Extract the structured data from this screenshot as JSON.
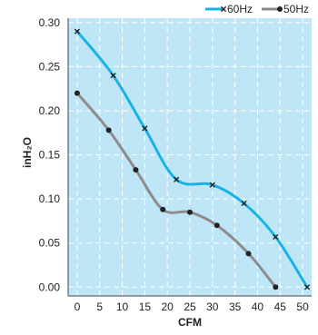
{
  "chart_data": {
    "type": "line",
    "xlabel": "CFM",
    "ylabel": "inH₂O",
    "xlim": [
      -2,
      52
    ],
    "ylim": [
      -0.01,
      0.305
    ],
    "x_ticks": [
      0,
      5,
      10,
      15,
      20,
      25,
      30,
      35,
      40,
      45,
      50
    ],
    "y_ticks": [
      0.0,
      0.05,
      0.1,
      0.15,
      0.2,
      0.25,
      0.3
    ],
    "y_tick_labels": [
      "0.00",
      "0.05",
      "0.10",
      "0.15",
      "0.20",
      "0.25",
      "0.30"
    ],
    "grid": true,
    "legend_position": "top-right",
    "plot_background": "#bfe6f7",
    "series": [
      {
        "name": "60Hz",
        "color": "#18b3e6",
        "marker": "x",
        "x": [
          0,
          8,
          15,
          22,
          30,
          37,
          44,
          51
        ],
        "y": [
          0.29,
          0.24,
          0.18,
          0.122,
          0.116,
          0.095,
          0.057,
          0.0
        ]
      },
      {
        "name": "50Hz",
        "color": "#8c8c8c",
        "marker": "dot",
        "x": [
          0,
          7,
          13,
          19,
          25,
          31,
          38,
          44
        ],
        "y": [
          0.22,
          0.178,
          0.133,
          0.088,
          0.085,
          0.07,
          0.038,
          0.0
        ]
      }
    ]
  }
}
